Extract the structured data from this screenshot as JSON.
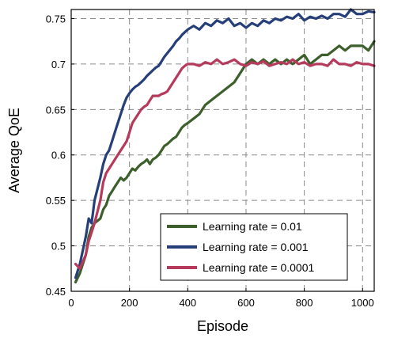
{
  "chart_data": {
    "type": "line",
    "xlabel": "Episode",
    "ylabel": "Average QoE",
    "xlim": [
      0,
      1040
    ],
    "ylim": [
      0.45,
      0.76
    ],
    "x_ticks": [
      0,
      200,
      400,
      600,
      800,
      1000
    ],
    "y_ticks": [
      0.45,
      0.5,
      0.55,
      0.6,
      0.65,
      0.7,
      0.75
    ],
    "x_tick_labels": [
      "0",
      "200",
      "400",
      "600",
      "800",
      "1000"
    ],
    "y_tick_labels": [
      "0.45",
      "0.5",
      "0.55",
      "0.6",
      "0.65",
      "0.7",
      "0.75"
    ],
    "grid": true,
    "grid_style": "dashed",
    "legend_position": "bottom-right",
    "series": [
      {
        "name": "Learning rate = 0.01",
        "color": "#3c5f2b",
        "x": [
          15,
          30,
          50,
          60,
          70,
          80,
          100,
          110,
          120,
          130,
          140,
          150,
          160,
          170,
          180,
          190,
          200,
          210,
          220,
          230,
          240,
          250,
          260,
          270,
          280,
          290,
          300,
          310,
          320,
          330,
          340,
          350,
          360,
          370,
          380,
          390,
          400,
          420,
          440,
          460,
          480,
          500,
          520,
          540,
          560,
          580,
          600,
          620,
          640,
          660,
          680,
          700,
          720,
          740,
          760,
          780,
          800,
          820,
          840,
          860,
          880,
          900,
          920,
          940,
          960,
          980,
          1000,
          1020,
          1040
        ],
        "y": [
          0.46,
          0.47,
          0.49,
          0.51,
          0.52,
          0.525,
          0.53,
          0.54,
          0.545,
          0.555,
          0.56,
          0.565,
          0.57,
          0.575,
          0.572,
          0.575,
          0.58,
          0.585,
          0.583,
          0.587,
          0.59,
          0.592,
          0.595,
          0.59,
          0.595,
          0.597,
          0.6,
          0.605,
          0.61,
          0.612,
          0.615,
          0.618,
          0.62,
          0.625,
          0.63,
          0.633,
          0.635,
          0.64,
          0.645,
          0.655,
          0.66,
          0.665,
          0.67,
          0.675,
          0.68,
          0.69,
          0.7,
          0.705,
          0.7,
          0.705,
          0.7,
          0.705,
          0.7,
          0.705,
          0.7,
          0.705,
          0.71,
          0.7,
          0.705,
          0.71,
          0.71,
          0.715,
          0.72,
          0.715,
          0.72,
          0.72,
          0.72,
          0.715,
          0.725
        ]
      },
      {
        "name": "Learning rate = 0.001",
        "color": "#263f78",
        "x": [
          15,
          30,
          50,
          60,
          70,
          80,
          100,
          110,
          120,
          130,
          140,
          150,
          160,
          170,
          180,
          190,
          200,
          210,
          220,
          230,
          240,
          250,
          260,
          270,
          280,
          290,
          300,
          310,
          320,
          330,
          340,
          350,
          360,
          370,
          380,
          390,
          400,
          420,
          440,
          460,
          480,
          500,
          520,
          540,
          560,
          580,
          600,
          620,
          640,
          660,
          680,
          700,
          720,
          740,
          760,
          780,
          800,
          820,
          840,
          860,
          880,
          900,
          920,
          940,
          960,
          980,
          1000,
          1020,
          1040
        ],
        "y": [
          0.465,
          0.48,
          0.51,
          0.53,
          0.525,
          0.55,
          0.575,
          0.59,
          0.6,
          0.605,
          0.615,
          0.625,
          0.635,
          0.645,
          0.655,
          0.663,
          0.668,
          0.672,
          0.675,
          0.677,
          0.68,
          0.683,
          0.687,
          0.69,
          0.693,
          0.696,
          0.698,
          0.703,
          0.708,
          0.712,
          0.716,
          0.72,
          0.725,
          0.728,
          0.732,
          0.735,
          0.738,
          0.742,
          0.738,
          0.745,
          0.742,
          0.748,
          0.745,
          0.75,
          0.742,
          0.745,
          0.74,
          0.745,
          0.742,
          0.748,
          0.745,
          0.75,
          0.748,
          0.752,
          0.75,
          0.755,
          0.748,
          0.752,
          0.75,
          0.753,
          0.75,
          0.755,
          0.755,
          0.752,
          0.76,
          0.755,
          0.755,
          0.758,
          0.757
        ]
      },
      {
        "name": "Learning rate = 0.0001",
        "color": "#b53a5b",
        "x": [
          15,
          30,
          50,
          60,
          70,
          80,
          100,
          110,
          120,
          130,
          140,
          150,
          160,
          170,
          180,
          190,
          200,
          210,
          220,
          230,
          240,
          250,
          260,
          270,
          280,
          290,
          300,
          310,
          320,
          330,
          340,
          350,
          360,
          370,
          380,
          390,
          400,
          420,
          440,
          460,
          480,
          500,
          520,
          540,
          560,
          580,
          600,
          620,
          640,
          660,
          680,
          700,
          720,
          740,
          760,
          780,
          800,
          820,
          840,
          860,
          880,
          900,
          920,
          940,
          960,
          980,
          1000,
          1020,
          1040
        ],
        "y": [
          0.48,
          0.475,
          0.49,
          0.505,
          0.515,
          0.525,
          0.55,
          0.57,
          0.58,
          0.585,
          0.59,
          0.595,
          0.6,
          0.605,
          0.61,
          0.615,
          0.625,
          0.635,
          0.64,
          0.645,
          0.65,
          0.653,
          0.655,
          0.66,
          0.665,
          0.665,
          0.665,
          0.667,
          0.668,
          0.67,
          0.675,
          0.68,
          0.685,
          0.69,
          0.695,
          0.698,
          0.7,
          0.7,
          0.698,
          0.702,
          0.7,
          0.705,
          0.7,
          0.702,
          0.705,
          0.7,
          0.698,
          0.702,
          0.7,
          0.703,
          0.698,
          0.7,
          0.702,
          0.7,
          0.705,
          0.7,
          0.702,
          0.698,
          0.7,
          0.7,
          0.698,
          0.705,
          0.7,
          0.7,
          0.698,
          0.702,
          0.7,
          0.7,
          0.698
        ]
      }
    ]
  }
}
